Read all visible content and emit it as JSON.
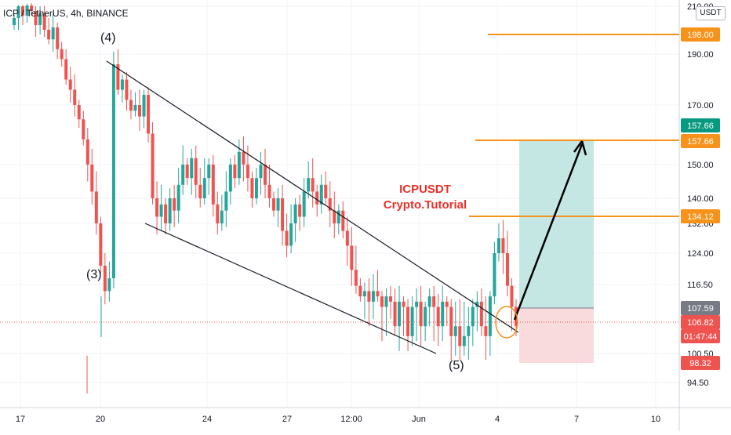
{
  "header": {
    "symbol_title": "ICP / TetherUS, 4h, BINANCE",
    "currency": "USDT"
  },
  "annotation": {
    "line1": "ICPUSDT",
    "line2": "Crypto.Tutorial"
  },
  "waves": {
    "w3": "(3)",
    "w4": "(4)",
    "w5": "(5)"
  },
  "colors": {
    "up": "#26a69a",
    "down": "#ef5350",
    "level_line": "#f7931a",
    "target_zone": "#b2dfdb",
    "stop_zone": "#f8d7da",
    "annotation": "#e8312a",
    "current_price": "#ef5350",
    "last_close_tag": "#787b86",
    "target_tag": "#089981",
    "target_orange": "#f7931a"
  },
  "chart_data": {
    "type": "candlestick",
    "y_axis_labels": [
      "210.00",
      "190.00",
      "170.00",
      "150.00",
      "140.00",
      "132.00",
      "124.00",
      "116.50",
      "100.50",
      "94.50"
    ],
    "x_axis_labels": [
      "17",
      "20",
      "24",
      "27",
      "12:00",
      "Jun",
      "4",
      "7",
      "10"
    ],
    "price_tags": [
      {
        "label": "198.00",
        "value": 198.0,
        "kind": "level"
      },
      {
        "label": "157.66",
        "value": 157.66,
        "kind": "target-green"
      },
      {
        "label": "157.66",
        "value": 157.66,
        "kind": "level"
      },
      {
        "label": "134.12",
        "value": 134.12,
        "kind": "level"
      },
      {
        "label": "107.59",
        "value": 107.59,
        "kind": "grey"
      },
      {
        "label": "106.82",
        "value": 106.82,
        "kind": "current"
      },
      {
        "label": "01:47:44",
        "value": 106.82,
        "kind": "countdown"
      },
      {
        "label": "98.32",
        "value": 98.32,
        "kind": "stop"
      }
    ],
    "horizontal_levels": [
      198.0,
      157.66,
      134.12
    ],
    "current_price": 106.82,
    "target": 157.66,
    "entry": 107.59,
    "stop": 98.32,
    "candles_approx_close": [
      205,
      210,
      206,
      212,
      208,
      202,
      207,
      200,
      196,
      201,
      192,
      188,
      180,
      176,
      170,
      165,
      158,
      150,
      142,
      132,
      121,
      114,
      118,
      186,
      176,
      180,
      172,
      168,
      170,
      166,
      174,
      160,
      140,
      134,
      138,
      132,
      140,
      136,
      144,
      150,
      146,
      152,
      144,
      140,
      146,
      150,
      138,
      132,
      136,
      142,
      150,
      146,
      154,
      150,
      146,
      140,
      146,
      150,
      144,
      140,
      136,
      140,
      130,
      126,
      132,
      138,
      134,
      142,
      146,
      142,
      138,
      144,
      140,
      136,
      132,
      136,
      130,
      126,
      120,
      116,
      112,
      114,
      110,
      114,
      112,
      108,
      112,
      110,
      106,
      110,
      108,
      104,
      108,
      110,
      106,
      108,
      112,
      108,
      106,
      110,
      108,
      104,
      106,
      102,
      104,
      106,
      108,
      110,
      106,
      104,
      112,
      124,
      128,
      124,
      116,
      108,
      106
    ]
  }
}
